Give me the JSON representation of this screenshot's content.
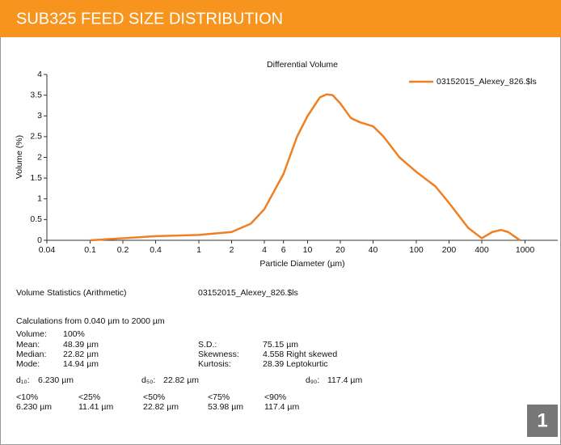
{
  "header": {
    "title": "SUB325 FEED SIZE DISTRIBUTION"
  },
  "chart_data": {
    "type": "line",
    "title": "Differential Volume",
    "x_label": "Particle Diameter (µm)",
    "y_label": "Volume (%)",
    "x_scale": "log",
    "xlim": [
      0.04,
      2000
    ],
    "ylim": [
      0,
      4
    ],
    "xticks": [
      0.04,
      0.1,
      0.2,
      0.4,
      1,
      2,
      4,
      6,
      10,
      20,
      40,
      100,
      200,
      400,
      1000
    ],
    "yticks": [
      0,
      0.5,
      1,
      1.5,
      2,
      2.5,
      3,
      3.5,
      4
    ],
    "legend": "upper right",
    "x": [
      0.1,
      0.2,
      0.4,
      1,
      2,
      3,
      4,
      6,
      8,
      10,
      13,
      15,
      17,
      20,
      25,
      30,
      40,
      50,
      70,
      100,
      150,
      200,
      300,
      400,
      500,
      600,
      700,
      900
    ],
    "series": [
      {
        "name": "03152015_Alexey_826.$ls",
        "color": "#f07f22",
        "values": [
          0,
          0.05,
          0.1,
          0.13,
          0.2,
          0.4,
          0.75,
          1.6,
          2.5,
          3.0,
          3.45,
          3.52,
          3.5,
          3.3,
          2.95,
          2.85,
          2.75,
          2.5,
          2.0,
          1.65,
          1.3,
          0.9,
          0.3,
          0.05,
          0.2,
          0.25,
          0.2,
          0
        ]
      }
    ]
  },
  "stats": {
    "heading": "Volume Statistics (Arithmetic)",
    "file": "03152015_Alexey_826.$ls",
    "range": "Calculations from 0.040 µm to 2000 µm",
    "volume": [
      "Volume:",
      "100%"
    ],
    "left": [
      [
        "Mean:",
        "48.39 µm"
      ],
      [
        "Median:",
        "22.82 µm"
      ],
      [
        "Mode:",
        "14.94 µm"
      ]
    ],
    "right": [
      [
        "S.D.:",
        "75.15 µm"
      ],
      [
        "Skewness:",
        "4.558 Right skewed"
      ],
      [
        "Kurtosis:",
        "28.39 Leptokurtic"
      ]
    ],
    "d": [
      [
        "d₁₀:",
        "6.230 µm"
      ],
      [
        "d₅₀:",
        "22.82 µm"
      ],
      [
        "d₉₀:",
        "117.4 µm"
      ]
    ],
    "percentiles": {
      "labels": [
        "<10%",
        "<25%",
        "<50%",
        "<75%",
        "<90%"
      ],
      "values": [
        "6.230 µm",
        "11.41 µm",
        "22.82 µm",
        "53.98 µm",
        "117.4 µm"
      ]
    }
  },
  "badge": "1"
}
